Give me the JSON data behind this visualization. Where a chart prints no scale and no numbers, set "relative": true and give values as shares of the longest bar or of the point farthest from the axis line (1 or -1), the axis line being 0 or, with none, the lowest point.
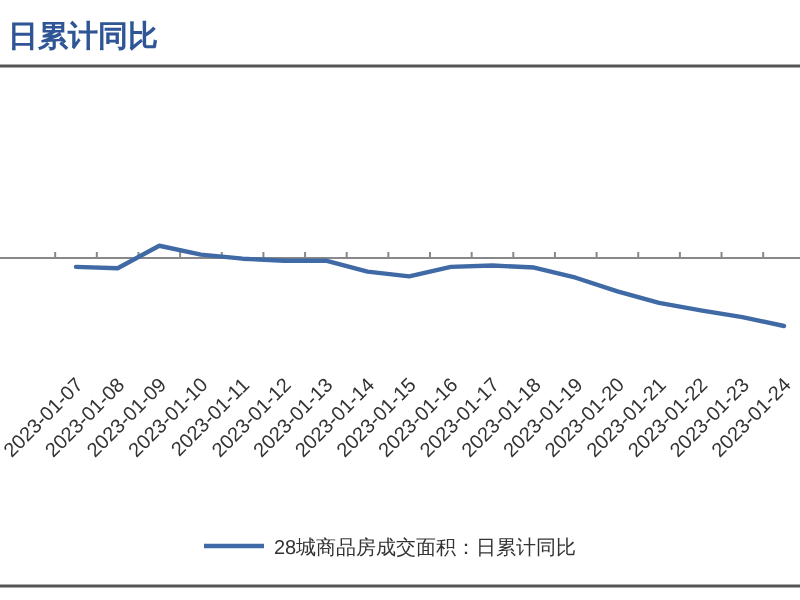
{
  "chart_data": {
    "type": "line",
    "title": "日累计同比",
    "relative": true,
    "categories": [
      "2023-01-07",
      "2023-01-08",
      "2023-01-09",
      "2023-01-10",
      "2023-01-11",
      "2023-01-12",
      "2023-01-13",
      "2023-01-14",
      "2023-01-15",
      "2023-01-16",
      "2023-01-17",
      "2023-01-18",
      "2023-01-19",
      "2023-01-20",
      "2023-01-21",
      "2023-01-22",
      "2023-01-23",
      "2023-01-24"
    ],
    "series": [
      {
        "name": "28城商品房成交面积：日累计同比",
        "color": "#3f6aa6",
        "values": [
          -0.13,
          -0.15,
          0.18,
          0.05,
          -0.01,
          -0.04,
          -0.04,
          -0.2,
          -0.27,
          -0.13,
          -0.11,
          -0.14,
          -0.29,
          -0.49,
          -0.66,
          -0.77,
          -0.87,
          -1
        ]
      }
    ],
    "legend": "bottom",
    "grid": false
  }
}
